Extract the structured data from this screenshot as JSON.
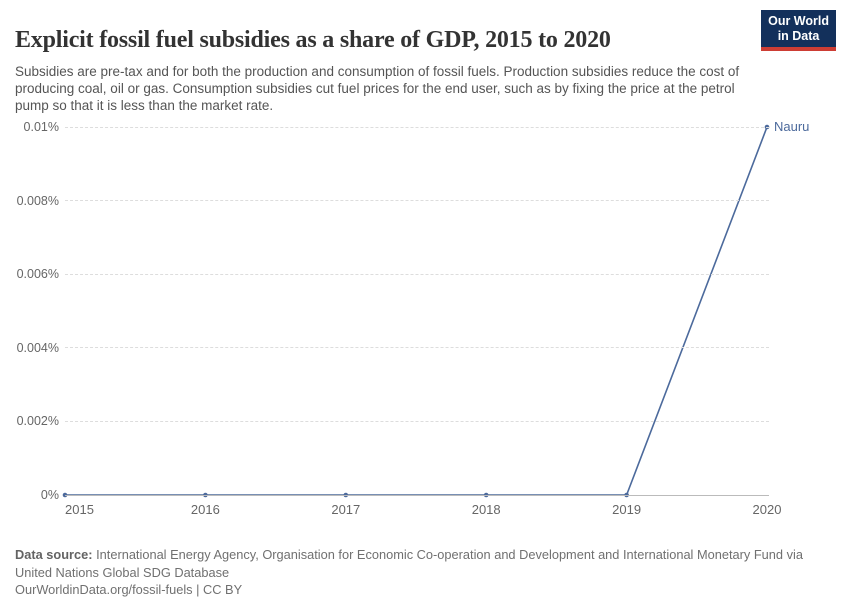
{
  "header": {
    "title": "Explicit fossil fuel subsidies as a share of GDP, 2015 to 2020",
    "subtitle": "Subsidies are pre-tax and for both the production and consumption of fossil fuels. Production subsidies reduce the cost of producing coal, oil or gas. Consumption subsidies cut fuel prices for the end user, such as by fixing the price at the petrol pump so that it is less than the market rate.",
    "logo": {
      "line1": "Our World",
      "line2": "in Data"
    }
  },
  "chart_data": {
    "type": "line",
    "title": "Explicit fossil fuel subsidies as a share of GDP, 2015 to 2020",
    "x": [
      2015,
      2016,
      2017,
      2018,
      2019,
      2020
    ],
    "series": [
      {
        "name": "Nauru",
        "values": [
          0,
          0,
          0,
          0,
          0,
          0.01
        ],
        "color": "#4c6a9c"
      }
    ],
    "unit": "% of GDP",
    "xlim": [
      2015,
      2020
    ],
    "ylim": [
      0,
      0.01
    ],
    "yticks": {
      "values": [
        0,
        0.002,
        0.004,
        0.006,
        0.008,
        0.01
      ],
      "labels": [
        "0%",
        "0.002%",
        "0.004%",
        "0.006%",
        "0.008%",
        "0.01%"
      ]
    },
    "xticks": {
      "values": [
        2015,
        2016,
        2017,
        2018,
        2019,
        2020
      ],
      "labels": [
        "2015",
        "2016",
        "2017",
        "2018",
        "2019",
        "2020"
      ]
    },
    "grid": "horizontal-dashed",
    "legend_position": "end-of-line",
    "end_label": "Nauru"
  },
  "footer": {
    "source_label": "Data source:",
    "source_text": "International Energy Agency, Organisation for Economic Co-operation and Development and International Monetary Fund via United Nations Global SDG Database",
    "link_text": "OurWorldinData.org/fossil-fuels | CC BY"
  },
  "colors": {
    "line": "#4c6a9c",
    "logo_bg": "#13305b",
    "logo_stripe": "#cd3d34",
    "grid": "#dddddd",
    "axis": "#bbbbbb",
    "tick_text": "#666666"
  }
}
